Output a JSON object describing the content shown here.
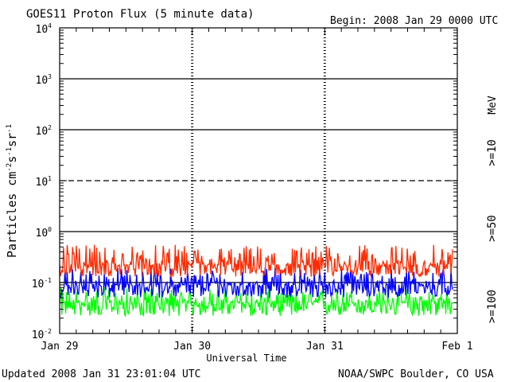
{
  "header": {
    "title": "GOES11 Proton Flux (5 minute data)",
    "begin": "Begin: 2008 Jan 29 0000 UTC"
  },
  "footer": {
    "updated": "Updated 2008 Jan 31 23:01:04 UTC",
    "credit": "NOAA/SWPC Boulder, CO USA"
  },
  "colors": {
    "ge10": "#ff2a00",
    "ge50": "#0000ff",
    "ge100": "#00ff00",
    "axis": "#000000"
  },
  "chart_data": {
    "type": "line",
    "title": "GOES11 Proton Flux (5 minute data)",
    "xlabel": "Universal Time",
    "ylabel": "Particles cm-2 s-1 sr-1",
    "yscale": "log",
    "ylim": [
      0.01,
      10000
    ],
    "ytick_bases": [
      "10",
      "10",
      "10",
      "10",
      "10",
      "10",
      "10"
    ],
    "ytick_exponents": [
      "-2",
      "-1",
      "0",
      "1",
      "2",
      "3",
      "4"
    ],
    "ytick_values": [
      0.01,
      0.1,
      1,
      10,
      100,
      1000,
      10000
    ],
    "xlim": [
      "2008-01-29",
      "2008-02-01"
    ],
    "x_tick_labels": [
      "Jan 29",
      "Jan 30",
      "Jan 31",
      "Feb 1"
    ],
    "legend": {
      "unit": "MeV",
      "placement": "right",
      "entries": [
        ">=10",
        ">=50",
        ">=100"
      ]
    },
    "grid": "horizontal lines at decades (10^1 dashed), dashed verticals at day boundaries",
    "series": [
      {
        "name": ">=10",
        "color": "#ff2a00",
        "level": 0.22,
        "spread_low": 0.13,
        "spread_high": 0.55
      },
      {
        "name": ">=50",
        "color": "#0000ff",
        "level": 0.09,
        "spread_low": 0.05,
        "spread_high": 0.2
      },
      {
        "name": ">=100",
        "color": "#00ff00",
        "level": 0.04,
        "spread_low": 0.022,
        "spread_high": 0.08
      }
    ]
  }
}
